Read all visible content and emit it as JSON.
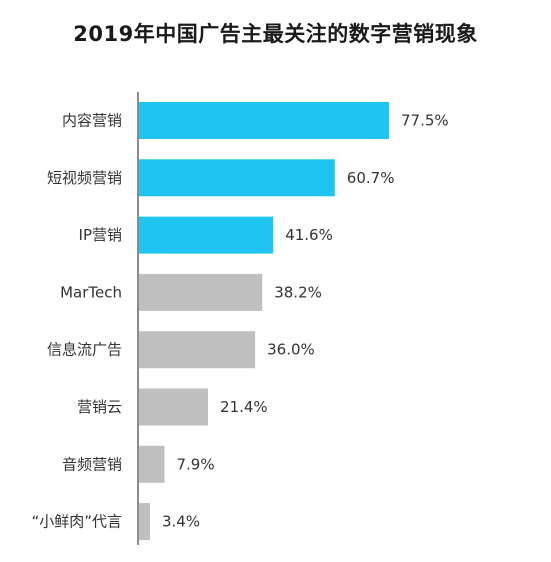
{
  "chart_data": {
    "type": "bar",
    "orientation": "horizontal",
    "title": "2019年中国广告主最关注的数字营销现象",
    "xlabel": "",
    "ylabel": "",
    "xlim": [
      0,
      100
    ],
    "grid": false,
    "legend": "none",
    "value_suffix": "%",
    "categories": [
      "内容营销",
      "短视频营销",
      "IP营销",
      "MarTech",
      "信息流广告",
      "营销云",
      "音频营销",
      "“小鲜肉”代言"
    ],
    "values": [
      77.5,
      60.7,
      41.6,
      38.2,
      36.0,
      21.4,
      7.9,
      3.4
    ],
    "bar_colors": [
      "#1fc5f0",
      "#1fc5f0",
      "#1fc5f0",
      "#bfbfbf",
      "#bfbfbf",
      "#bfbfbf",
      "#bfbfbf",
      "#bfbfbf"
    ]
  },
  "colors": {
    "highlight": "#1fc5f0",
    "default": "#bfbfbf",
    "axis": "#666666",
    "text": "#333333"
  }
}
